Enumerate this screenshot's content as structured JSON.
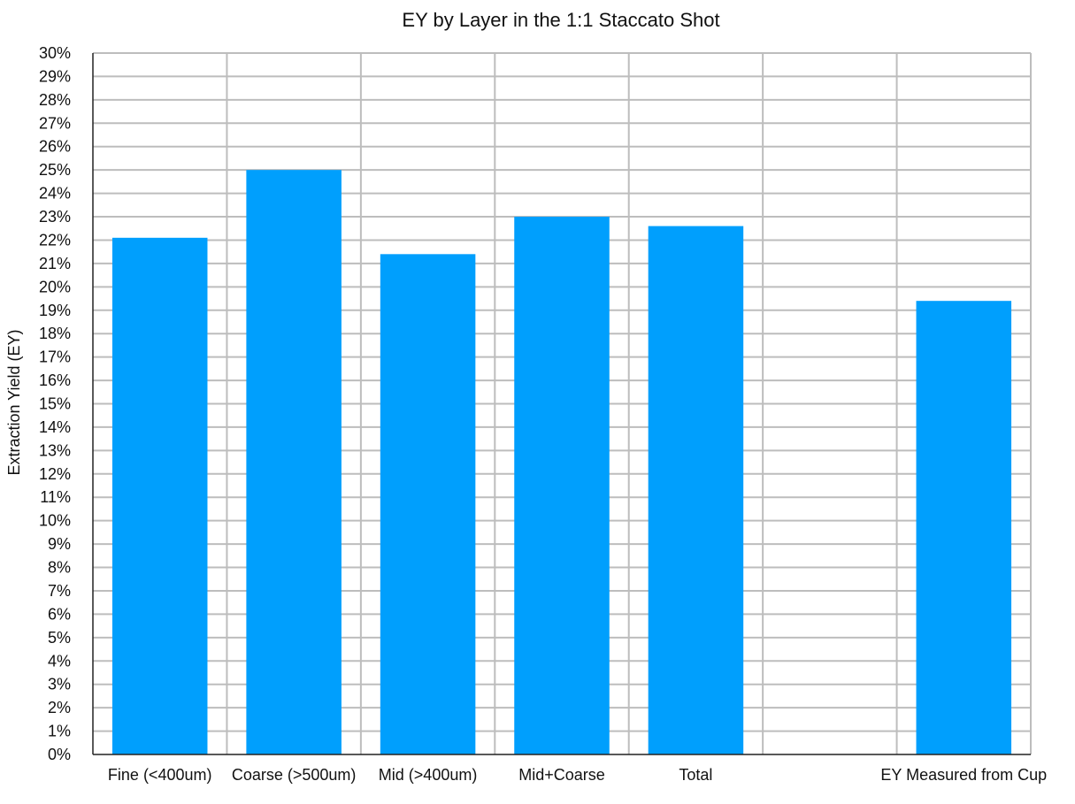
{
  "chart_data": {
    "type": "bar",
    "title": "EY by Layer in the 1:1 Staccato Shot",
    "xlabel": "",
    "ylabel": "Extraction Yield (EY)",
    "categories": [
      "Fine (<400um)",
      "Coarse (>500um)",
      "Mid (>400um)",
      "Mid+Coarse",
      "Total",
      "",
      "EY Measured from Cup"
    ],
    "values": [
      22.1,
      25.0,
      21.4,
      23.0,
      22.6,
      null,
      19.4
    ],
    "ylim": [
      0,
      30
    ],
    "ytick_step": 1,
    "ytick_format": "percent",
    "grid": true,
    "legend": "none"
  },
  "colors": {
    "bar": "#009ffd",
    "grid": "#bdbdbd",
    "axis": "#222222",
    "text": "#111111",
    "background": "#ffffff"
  }
}
